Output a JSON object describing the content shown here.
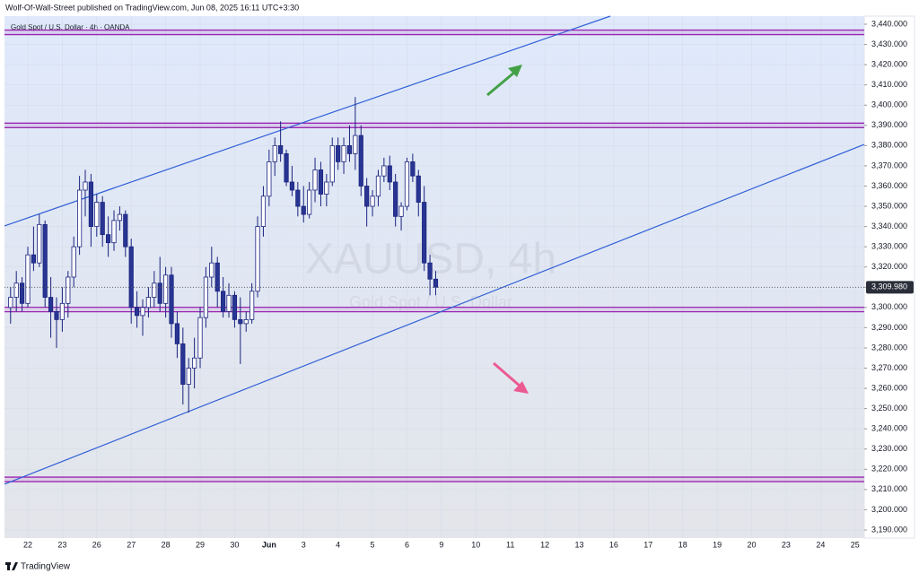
{
  "header": "Wolf-Of-Wall-Street published on TradingView.com, Jun 08, 2025 16:11 UTC+3:30",
  "footer": "TradingView",
  "chart_data": {
    "type": "candlestick",
    "symbol": "Gold Spot / U.S. Dollar · 4h · OANDA",
    "watermark": "XAUUSD, 4h",
    "watermark_subtitle": "Gold Spot / U.S. Dollar",
    "up_color": "#ffffff",
    "down_color": "#283593",
    "outline_color": "#1a237e",
    "open": [
      3300,
      3305,
      3312,
      3302,
      3326,
      3322,
      3341,
      3305,
      3298,
      3294,
      3302,
      3315,
      3330,
      3358,
      3362,
      3340,
      3352,
      3336,
      3332,
      3343,
      3346,
      3330,
      3300,
      3296,
      3300,
      3305,
      3312,
      3302,
      3316,
      3292,
      3282,
      3262,
      3270,
      3275,
      3295,
      3315,
      3322,
      3308,
      3298,
      3306,
      3294,
      3292,
      3294,
      3308,
      3340,
      3355,
      3372,
      3380,
      3376,
      3362,
      3358,
      3350,
      3346,
      3358,
      3368,
      3356,
      3362,
      3380,
      3372,
      3380,
      3376,
      3385,
      3360,
      3350,
      3355,
      3365,
      3370,
      3362,
      3345,
      3350,
      3372,
      3365,
      3352,
      3322,
      3314
    ],
    "high": [
      3310,
      3318,
      3315,
      3330,
      3340,
      3346,
      3343,
      3315,
      3305,
      3310,
      3318,
      3335,
      3365,
      3368,
      3366,
      3356,
      3355,
      3345,
      3348,
      3350,
      3348,
      3334,
      3308,
      3304,
      3310,
      3318,
      3325,
      3320,
      3320,
      3298,
      3290,
      3275,
      3285,
      3300,
      3320,
      3330,
      3325,
      3315,
      3312,
      3308,
      3305,
      3298,
      3312,
      3345,
      3360,
      3378,
      3384,
      3392,
      3378,
      3370,
      3362,
      3360,
      3362,
      3374,
      3372,
      3366,
      3384,
      3384,
      3384,
      3390,
      3404,
      3390,
      3364,
      3358,
      3368,
      3374,
      3375,
      3366,
      3352,
      3374,
      3376,
      3368,
      3360,
      3326,
      3318
    ],
    "low": [
      3292,
      3298,
      3298,
      3300,
      3318,
      3320,
      3300,
      3285,
      3280,
      3288,
      3295,
      3310,
      3326,
      3345,
      3330,
      3335,
      3330,
      3325,
      3328,
      3338,
      3325,
      3292,
      3290,
      3286,
      3295,
      3300,
      3298,
      3295,
      3285,
      3275,
      3252,
      3248,
      3260,
      3270,
      3290,
      3310,
      3300,
      3295,
      3295,
      3290,
      3272,
      3288,
      3292,
      3305,
      3335,
      3350,
      3365,
      3372,
      3360,
      3355,
      3345,
      3342,
      3344,
      3352,
      3350,
      3350,
      3360,
      3368,
      3366,
      3372,
      3368,
      3355,
      3340,
      3345,
      3350,
      3362,
      3358,
      3340,
      3338,
      3348,
      3362,
      3345,
      3318,
      3306,
      3306
    ],
    "close": [
      3305,
      3312,
      3302,
      3326,
      3322,
      3341,
      3305,
      3298,
      3294,
      3302,
      3315,
      3330,
      3358,
      3362,
      3340,
      3352,
      3336,
      3332,
      3343,
      3346,
      3330,
      3300,
      3296,
      3300,
      3305,
      3312,
      3302,
      3316,
      3292,
      3282,
      3262,
      3270,
      3275,
      3295,
      3315,
      3322,
      3308,
      3298,
      3306,
      3294,
      3292,
      3294,
      3308,
      3340,
      3355,
      3372,
      3380,
      3376,
      3362,
      3358,
      3350,
      3346,
      3358,
      3368,
      3356,
      3362,
      3380,
      3372,
      3380,
      3376,
      3385,
      3360,
      3350,
      3355,
      3365,
      3370,
      3362,
      3345,
      3350,
      3372,
      3365,
      3352,
      3322,
      3314,
      3309.98
    ],
    "last_price": {
      "value": 3309.98,
      "label": "3,309.980"
    },
    "levels": [
      3436,
      3390,
      3299,
      3215
    ],
    "level_color": "#9c27b0",
    "trendlines": [
      {
        "x": [
          -1.06,
          104.4
        ],
        "y": [
          3340.3,
          3444
        ]
      },
      {
        "x": [
          -1.06,
          148.6
        ],
        "y": [
          3212.6,
          3380.6
        ]
      }
    ],
    "trendline_color": "#2f5fd6",
    "xlim": [
      -1.06,
      148.6
    ],
    "ylim": [
      3186,
      3444
    ],
    "xticks": [
      {
        "value": 3,
        "label": "22"
      },
      {
        "value": 9,
        "label": "23"
      },
      {
        "value": 15,
        "label": "26"
      },
      {
        "value": 21,
        "label": "27"
      },
      {
        "value": 27,
        "label": "28"
      },
      {
        "value": 33,
        "label": "29"
      },
      {
        "value": 39,
        "label": "30"
      },
      {
        "value": 45,
        "label": "Jun"
      },
      {
        "value": 51,
        "label": "3"
      },
      {
        "value": 57,
        "label": "4"
      },
      {
        "value": 63,
        "label": "5"
      },
      {
        "value": 69,
        "label": "6"
      },
      {
        "value": 75,
        "label": "9"
      },
      {
        "value": 81,
        "label": "10"
      },
      {
        "value": 87,
        "label": "11"
      },
      {
        "value": 93,
        "label": "12"
      },
      {
        "value": 99,
        "label": "13"
      },
      {
        "value": 105,
        "label": "16"
      },
      {
        "value": 111,
        "label": "17"
      },
      {
        "value": 117,
        "label": "18"
      },
      {
        "value": 123,
        "label": "19"
      },
      {
        "value": 129,
        "label": "20"
      },
      {
        "value": 135,
        "label": "23"
      },
      {
        "value": 141,
        "label": "24"
      },
      {
        "value": 147,
        "label": "25"
      }
    ],
    "yticks": [
      {
        "value": 3190,
        "label": "3,190.000"
      },
      {
        "value": 3200,
        "label": "3,200.000"
      },
      {
        "value": 3210,
        "label": "3,210.000"
      },
      {
        "value": 3220,
        "label": "3,220.000"
      },
      {
        "value": 3230,
        "label": "3,230.000"
      },
      {
        "value": 3240,
        "label": "3,240.000"
      },
      {
        "value": 3250,
        "label": "3,250.000"
      },
      {
        "value": 3260,
        "label": "3,260.000"
      },
      {
        "value": 3270,
        "label": "3,270.000"
      },
      {
        "value": 3280,
        "label": "3,280.000"
      },
      {
        "value": 3290,
        "label": "3,290.000"
      },
      {
        "value": 3300,
        "label": "3,300.000"
      },
      {
        "value": 3310,
        "label": "3,310.000"
      },
      {
        "value": 3320,
        "label": "3,320.000"
      },
      {
        "value": 3330,
        "label": "3,330.000"
      },
      {
        "value": 3340,
        "label": "3,340.000"
      },
      {
        "value": 3350,
        "label": "3,350.000"
      },
      {
        "value": 3360,
        "label": "3,360.000"
      },
      {
        "value": 3370,
        "label": "3,370.000"
      },
      {
        "value": 3380,
        "label": "3,380.000"
      },
      {
        "value": 3390,
        "label": "3,390.000"
      },
      {
        "value": 3400,
        "label": "3,400.000"
      },
      {
        "value": 3410,
        "label": "3,410.000"
      },
      {
        "value": 3420,
        "label": "3,420.000"
      },
      {
        "value": 3430,
        "label": "3,430.000"
      },
      {
        "value": 3440,
        "label": "3,440.000"
      }
    ]
  }
}
